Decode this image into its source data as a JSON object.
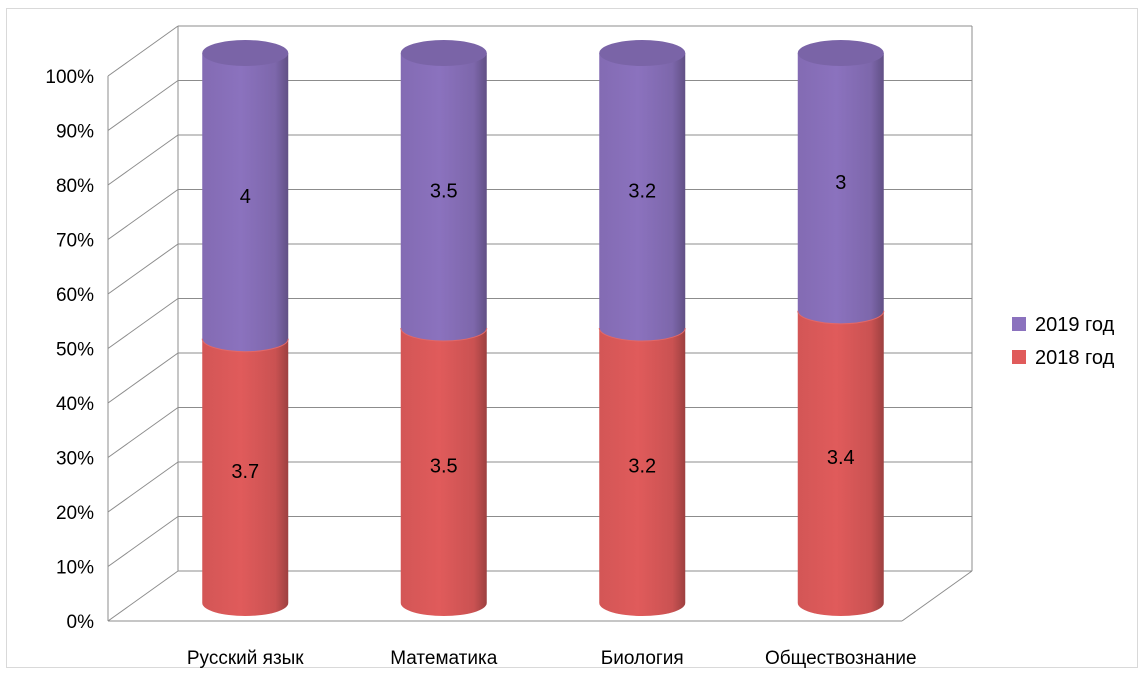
{
  "chart_data": {
    "type": "bar",
    "stacked": "percent",
    "three_d": true,
    "categories": [
      "Русский язык",
      "Математика",
      "Биология",
      "Обществознание"
    ],
    "series": [
      {
        "name": "2018 год",
        "values": [
          3.7,
          3.5,
          3.2,
          3.4
        ],
        "color": "#e05b5b"
      },
      {
        "name": "2019 год",
        "values": [
          4,
          3.5,
          3.2,
          3
        ],
        "color": "#8b72be"
      }
    ],
    "yticks": [
      "0%",
      "10%",
      "20%",
      "30%",
      "40%",
      "50%",
      "60%",
      "70%",
      "80%",
      "90%",
      "100%"
    ],
    "ylim": [
      0,
      100
    ],
    "grid": true,
    "legend": "right",
    "data_labels": true,
    "title": "",
    "xlabel": "",
    "ylabel": ""
  }
}
